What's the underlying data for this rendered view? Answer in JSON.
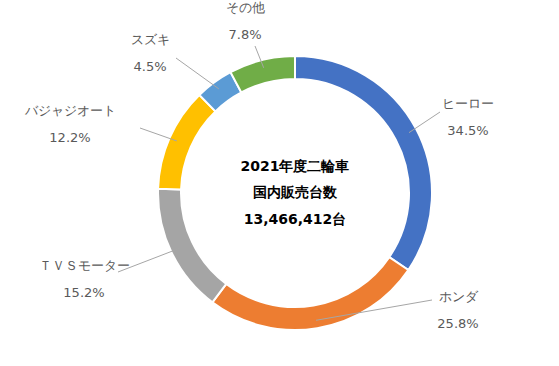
{
  "chart_data": {
    "type": "pie",
    "annotations": [
      "2021年度二輪車",
      "国内販売台数",
      "13,466,412台"
    ],
    "categories": [
      "ヒーロー",
      "ホンダ",
      "ＴＶＳモーター",
      "バジャジオート",
      "スズキ",
      "その他"
    ],
    "values": [
      34.5,
      25.8,
      15.2,
      12.2,
      4.5,
      7.8
    ],
    "value_labels": [
      "34.5%",
      "25.8%",
      "15.2%",
      "12.2%",
      "4.5%",
      "7.8%"
    ],
    "colors": [
      "#4472c4",
      "#ed7d31",
      "#a5a5a5",
      "#ffc000",
      "#5b9bd5",
      "#70ad47"
    ],
    "data_labels": true
  }
}
